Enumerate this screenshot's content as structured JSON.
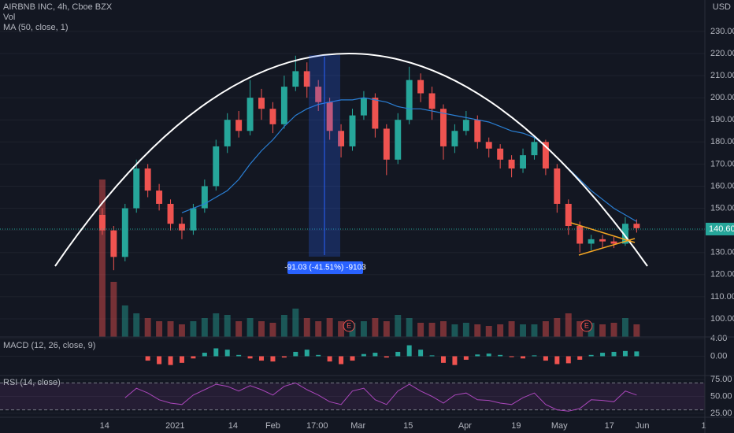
{
  "chart_data": [
    {
      "type": "candlestick",
      "title": "AIRBNB INC, 4h, Cboe BZX",
      "currency": "USD",
      "up_color": "#26a69a",
      "down_color": "#ef5350",
      "xlim": [
        0,
        62
      ],
      "xticks": [
        {
          "value": 9.2,
          "label": "14"
        },
        {
          "value": 15.4,
          "label": "2021"
        },
        {
          "value": 20.5,
          "label": "14"
        },
        {
          "value": 24,
          "label": "Feb"
        },
        {
          "value": 27.9,
          "label": "17:00"
        },
        {
          "value": 31.5,
          "label": "Mar"
        },
        {
          "value": 35.9,
          "label": "15"
        },
        {
          "value": 40.9,
          "label": "Apr"
        },
        {
          "value": 45.4,
          "label": "19"
        },
        {
          "value": 49.2,
          "label": "May"
        },
        {
          "value": 53.6,
          "label": "17"
        },
        {
          "value": 56.5,
          "label": "Jun"
        },
        {
          "value": 61.9,
          "label": "1"
        }
      ],
      "ylim": [
        91.8,
        244.2
      ],
      "yticks": [
        {
          "value": 100,
          "label": "100.00"
        },
        {
          "value": 110,
          "label": "110.00"
        },
        {
          "value": 120,
          "label": "120.00"
        },
        {
          "value": 130,
          "label": "130.00"
        },
        {
          "value": 140,
          "label": "140.00"
        },
        {
          "value": 150,
          "label": "150.00"
        },
        {
          "value": 160,
          "label": "160.00"
        },
        {
          "value": 170,
          "label": "170.00"
        },
        {
          "value": 180,
          "label": "180.00"
        },
        {
          "value": 190,
          "label": "190.00"
        },
        {
          "value": 200,
          "label": "200.00"
        },
        {
          "value": 210,
          "label": "210.00"
        },
        {
          "value": 220,
          "label": "220.00"
        },
        {
          "value": 230,
          "label": "230.00"
        }
      ],
      "x": [
        9,
        10,
        11,
        12,
        13,
        14,
        15,
        16,
        17,
        18,
        19,
        20,
        21,
        22,
        23,
        24,
        25,
        26,
        27,
        28,
        29,
        30,
        31,
        32,
        33,
        34,
        35,
        36,
        37,
        38,
        39,
        40,
        41,
        42,
        43,
        44,
        45,
        46,
        47,
        48,
        49,
        50,
        51,
        52,
        53,
        54,
        55,
        56
      ],
      "candles": [
        [
          147,
          150,
          138,
          140
        ],
        [
          140,
          142,
          122,
          128
        ],
        [
          128,
          152,
          126,
          150
        ],
        [
          150,
          172,
          148,
          168
        ],
        [
          168,
          170,
          155,
          158
        ],
        [
          158,
          161,
          149,
          152
        ],
        [
          152,
          154,
          140,
          143
        ],
        [
          143,
          146,
          136,
          140
        ],
        [
          140,
          152,
          138,
          150
        ],
        [
          150,
          163,
          148,
          160
        ],
        [
          160,
          181,
          158,
          178
        ],
        [
          178,
          193,
          175,
          190
        ],
        [
          190,
          194,
          182,
          185
        ],
        [
          185,
          208,
          183,
          200
        ],
        [
          200,
          204,
          190,
          195
        ],
        [
          195,
          198,
          184,
          188
        ],
        [
          188,
          210,
          186,
          205
        ],
        [
          205,
          219,
          203,
          212
        ],
        [
          212,
          216,
          200,
          205
        ],
        [
          205,
          208,
          194,
          198
        ],
        [
          198,
          200,
          181,
          185
        ],
        [
          185,
          188,
          173,
          178
        ],
        [
          178,
          195,
          176,
          192
        ],
        [
          192,
          203,
          190,
          200
        ],
        [
          200,
          202,
          182,
          186
        ],
        [
          186,
          188,
          165,
          172
        ],
        [
          172,
          193,
          170,
          190
        ],
        [
          190,
          214,
          188,
          208
        ],
        [
          208,
          211,
          198,
          202
        ],
        [
          202,
          205,
          190,
          195
        ],
        [
          195,
          197,
          172,
          178
        ],
        [
          178,
          188,
          175,
          185
        ],
        [
          185,
          194,
          183,
          190
        ],
        [
          190,
          192,
          177,
          180
        ],
        [
          180,
          182,
          173,
          177
        ],
        [
          177,
          179,
          168,
          172
        ],
        [
          172,
          174,
          164,
          168
        ],
        [
          168,
          177,
          166,
          174
        ],
        [
          174,
          182,
          172,
          180
        ],
        [
          180,
          181,
          165,
          168
        ],
        [
          168,
          170,
          148,
          152
        ],
        [
          152,
          154,
          138,
          142
        ],
        [
          142,
          144,
          130,
          134
        ],
        [
          134,
          138,
          131,
          136
        ],
        [
          136,
          138,
          132,
          135
        ],
        [
          135,
          137,
          132,
          134
        ],
        [
          134,
          146,
          133,
          143
        ],
        [
          143,
          145,
          139,
          141
        ]
      ],
      "ma": {
        "name": "MA (50, close, 1)",
        "color": "#2a7fd4",
        "values": [
          null,
          null,
          null,
          null,
          null,
          null,
          null,
          148,
          150,
          152,
          155,
          158,
          163,
          170,
          176,
          181,
          187,
          192,
          195,
          197,
          198,
          199,
          199,
          200,
          199,
          198,
          196,
          195,
          195,
          194,
          193,
          192,
          191,
          190,
          189,
          187,
          185,
          184,
          182,
          178,
          173,
          168,
          163,
          158,
          154,
          150,
          147,
          144
        ]
      },
      "volume": {
        "name": "Vol",
        "values": [
          100,
          35,
          20,
          15,
          12,
          10,
          10,
          8,
          10,
          12,
          15,
          14,
          10,
          12,
          10,
          9,
          14,
          18,
          12,
          10,
          12,
          10,
          9,
          10,
          12,
          10,
          14,
          12,
          9,
          9,
          10,
          8,
          9,
          8,
          7,
          8,
          10,
          8,
          8,
          10,
          12,
          15,
          10,
          9,
          8,
          9,
          12,
          8
        ]
      },
      "last_price": {
        "value": 140.6,
        "label": "140.60"
      },
      "measure_label": "-91.03 (-41.51%) -9103",
      "earnings": [
        {
          "x": 30.7,
          "label": "E"
        },
        {
          "x": 51.6,
          "label": "E"
        }
      ]
    },
    {
      "type": "macd",
      "title": "MACD (12, 26, close, 9)",
      "up_color": "#26a69a",
      "down_color": "#ef5350",
      "xlim": [
        0,
        62
      ],
      "ylim": [
        -4.4,
        4.4
      ],
      "yticks": [
        {
          "value": 4,
          "label": "4.00"
        },
        {
          "value": 0,
          "label": "0.00"
        }
      ],
      "x": [
        9,
        10,
        11,
        12,
        13,
        14,
        15,
        16,
        17,
        18,
        19,
        20,
        21,
        22,
        23,
        24,
        25,
        26,
        27,
        28,
        29,
        30,
        31,
        32,
        33,
        34,
        35,
        36,
        37,
        38,
        39,
        40,
        41,
        42,
        43,
        44,
        45,
        46,
        47,
        48,
        49,
        50,
        51,
        52,
        53,
        54,
        55,
        56
      ],
      "values": [
        null,
        null,
        null,
        null,
        -1.0,
        -1.8,
        -2.0,
        -1.5,
        -0.5,
        0.8,
        1.8,
        1.5,
        0.3,
        -0.5,
        -1.0,
        -1.2,
        -0.3,
        1.0,
        1.5,
        0.3,
        -1.2,
        -1.8,
        -1.0,
        0.5,
        0.8,
        -0.3,
        1.0,
        2.5,
        1.5,
        0.2,
        -1.5,
        -2.0,
        -0.8,
        0.4,
        0.6,
        0.3,
        -0.2,
        -0.5,
        0.2,
        -1.0,
        -1.8,
        -1.6,
        -0.8,
        0.3,
        0.8,
        1.0,
        1.2,
        1.1
      ]
    },
    {
      "type": "rsi",
      "title": "RSI (14, close)",
      "color": "#ab47bc",
      "xlim": [
        0,
        62
      ],
      "ylim": [
        19,
        81
      ],
      "yticks": [
        {
          "value": 75,
          "label": "75.00"
        },
        {
          "value": 50,
          "label": "50.00"
        },
        {
          "value": 25,
          "label": "25.00"
        }
      ],
      "bands": [
        70,
        30
      ],
      "x": [
        9,
        10,
        11,
        12,
        13,
        14,
        15,
        16,
        17,
        18,
        19,
        20,
        21,
        22,
        23,
        24,
        25,
        26,
        27,
        28,
        29,
        30,
        31,
        32,
        33,
        34,
        35,
        36,
        37,
        38,
        39,
        40,
        41,
        42,
        43,
        44,
        45,
        46,
        47,
        48,
        49,
        50,
        51,
        52,
        53,
        54,
        55,
        56
      ],
      "values": [
        null,
        null,
        48,
        62,
        55,
        45,
        40,
        38,
        52,
        60,
        68,
        65,
        58,
        66,
        60,
        52,
        65,
        70,
        60,
        52,
        42,
        38,
        58,
        62,
        45,
        38,
        58,
        68,
        58,
        50,
        40,
        52,
        55,
        45,
        44,
        40,
        38,
        48,
        55,
        38,
        30,
        28,
        32,
        45,
        44,
        42,
        58,
        52
      ]
    }
  ]
}
